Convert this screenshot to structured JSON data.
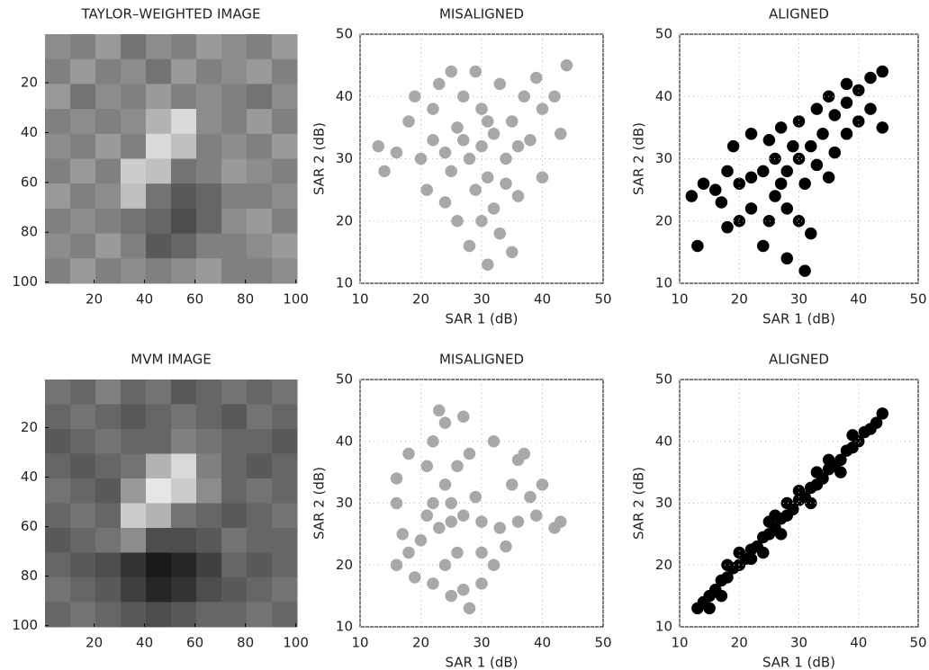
{
  "chart_data": [
    {
      "type": "image",
      "title": "TAYLOR–WEIGHTED IMAGE",
      "colormap": "gray",
      "xlim": [
        0.5,
        100.5
      ],
      "ylim": [
        100.5,
        0.5
      ],
      "xticks": [
        20,
        40,
        60,
        80,
        100
      ],
      "yticks": [
        20,
        40,
        60,
        80,
        100
      ],
      "z": [
        [
          0.55,
          0.5,
          0.6,
          0.45,
          0.55,
          0.5,
          0.6,
          0.55,
          0.5,
          0.6
        ],
        [
          0.5,
          0.6,
          0.5,
          0.55,
          0.45,
          0.6,
          0.5,
          0.55,
          0.6,
          0.5
        ],
        [
          0.6,
          0.45,
          0.55,
          0.5,
          0.6,
          0.5,
          0.55,
          0.5,
          0.45,
          0.55
        ],
        [
          0.5,
          0.55,
          0.5,
          0.55,
          0.7,
          0.85,
          0.55,
          0.5,
          0.6,
          0.5
        ],
        [
          0.55,
          0.5,
          0.6,
          0.5,
          0.85,
          0.75,
          0.5,
          0.55,
          0.5,
          0.6
        ],
        [
          0.5,
          0.6,
          0.5,
          0.8,
          0.75,
          0.45,
          0.5,
          0.6,
          0.55,
          0.5
        ],
        [
          0.6,
          0.5,
          0.55,
          0.75,
          0.45,
          0.35,
          0.4,
          0.5,
          0.5,
          0.55
        ],
        [
          0.5,
          0.55,
          0.5,
          0.45,
          0.4,
          0.3,
          0.4,
          0.55,
          0.6,
          0.5
        ],
        [
          0.55,
          0.5,
          0.6,
          0.5,
          0.35,
          0.4,
          0.5,
          0.5,
          0.55,
          0.6
        ],
        [
          0.5,
          0.6,
          0.5,
          0.55,
          0.5,
          0.55,
          0.6,
          0.5,
          0.5,
          0.55
        ]
      ]
    },
    {
      "type": "scatter",
      "title": "MISALIGNED",
      "xlabel": "SAR 1 (dB)",
      "ylabel": "SAR 2 (dB)",
      "color": "#a8a8a8",
      "grid": true,
      "xlim": [
        10,
        50
      ],
      "ylim": [
        10,
        50
      ],
      "xticks": [
        10,
        20,
        30,
        40,
        50
      ],
      "yticks": [
        10,
        20,
        30,
        40,
        50
      ],
      "x": [
        30,
        28,
        32,
        26,
        34,
        30,
        25,
        35,
        29,
        31,
        22,
        38,
        27,
        33,
        24,
        36,
        20,
        40,
        18,
        42,
        30,
        28,
        33,
        23,
        44,
        16,
        13,
        40,
        37,
        26,
        31,
        35,
        21,
        39,
        19,
        25,
        43,
        14,
        29,
        34,
        27,
        31,
        24,
        36,
        22,
        32
      ],
      "values": [
        32,
        30,
        34,
        35,
        30,
        38,
        28,
        36,
        25,
        27,
        33,
        33,
        40,
        42,
        23,
        24,
        30,
        38,
        36,
        40,
        20,
        16,
        18,
        42,
        45,
        31,
        32,
        27,
        40,
        20,
        13,
        15,
        25,
        43,
        40,
        44,
        34,
        28,
        44,
        26,
        33,
        36,
        31,
        32,
        38,
        22
      ]
    },
    {
      "type": "scatter",
      "title": "ALIGNED",
      "xlabel": "SAR 1 (dB)",
      "ylabel": "SAR 2 (dB)",
      "color": "#000000",
      "grid": true,
      "xlim": [
        10,
        50
      ],
      "ylim": [
        10,
        50
      ],
      "xticks": [
        10,
        20,
        30,
        40,
        50
      ],
      "yticks": [
        10,
        20,
        30,
        40,
        50
      ],
      "x": [
        30,
        28,
        32,
        34,
        36,
        38,
        40,
        42,
        44,
        26,
        24,
        22,
        20,
        18,
        16,
        14,
        12,
        25,
        27,
        30,
        33,
        35,
        38,
        26,
        28,
        30,
        32,
        25,
        22,
        20,
        24,
        28,
        31,
        27,
        33,
        36,
        38,
        40,
        42,
        44,
        22,
        19,
        17,
        13,
        18,
        35,
        29,
        31
      ],
      "values": [
        30,
        28,
        32,
        34,
        37,
        39,
        41,
        43,
        44,
        30,
        28,
        27,
        26,
        28,
        25,
        26,
        24,
        33,
        35,
        36,
        38,
        40,
        42,
        24,
        22,
        20,
        18,
        20,
        22,
        20,
        16,
        14,
        12,
        26,
        29,
        31,
        34,
        36,
        38,
        35,
        34,
        32,
        23,
        16,
        19,
        27,
        32,
        26
      ]
    },
    {
      "type": "image",
      "title": "MVM IMAGE",
      "colormap": "gray",
      "xlim": [
        0.5,
        100.5
      ],
      "ylim": [
        100.5,
        0.5
      ],
      "xticks": [
        20,
        40,
        60,
        80,
        100
      ],
      "yticks": [
        20,
        40,
        60,
        80,
        100
      ],
      "z": [
        [
          0.45,
          0.4,
          0.5,
          0.4,
          0.45,
          0.35,
          0.4,
          0.45,
          0.4,
          0.45
        ],
        [
          0.4,
          0.45,
          0.4,
          0.35,
          0.4,
          0.45,
          0.4,
          0.35,
          0.45,
          0.4
        ],
        [
          0.35,
          0.4,
          0.45,
          0.4,
          0.4,
          0.5,
          0.45,
          0.4,
          0.4,
          0.35
        ],
        [
          0.4,
          0.35,
          0.4,
          0.45,
          0.7,
          0.85,
          0.5,
          0.4,
          0.35,
          0.4
        ],
        [
          0.45,
          0.4,
          0.35,
          0.6,
          0.9,
          0.8,
          0.55,
          0.4,
          0.45,
          0.4
        ],
        [
          0.4,
          0.45,
          0.4,
          0.8,
          0.7,
          0.45,
          0.4,
          0.35,
          0.4,
          0.45
        ],
        [
          0.35,
          0.4,
          0.45,
          0.55,
          0.3,
          0.3,
          0.35,
          0.45,
          0.4,
          0.4
        ],
        [
          0.4,
          0.35,
          0.3,
          0.2,
          0.1,
          0.15,
          0.25,
          0.4,
          0.35,
          0.4
        ],
        [
          0.45,
          0.4,
          0.35,
          0.25,
          0.15,
          0.2,
          0.3,
          0.35,
          0.4,
          0.45
        ],
        [
          0.4,
          0.45,
          0.4,
          0.35,
          0.3,
          0.35,
          0.4,
          0.4,
          0.45,
          0.4
        ]
      ]
    },
    {
      "type": "scatter",
      "title": "MISALIGNED",
      "xlabel": "SAR 1 (dB)",
      "ylabel": "SAR 2 (dB)",
      "color": "#a8a8a8",
      "grid": true,
      "xlim": [
        10,
        50
      ],
      "ylim": [
        10,
        50
      ],
      "xticks": [
        10,
        20,
        30,
        40,
        50
      ],
      "yticks": [
        10,
        20,
        30,
        40,
        50
      ],
      "x": [
        25,
        23,
        27,
        22,
        24,
        26,
        28,
        22,
        24,
        21,
        30,
        33,
        36,
        39,
        42,
        43,
        38,
        35,
        40,
        37,
        36,
        20,
        18,
        17,
        16,
        19,
        22,
        25,
        28,
        27,
        24,
        26,
        30,
        32,
        29,
        25,
        21,
        16,
        16,
        18,
        32,
        27,
        23,
        34,
        30
      ],
      "values": [
        27,
        26,
        28,
        30,
        33,
        36,
        38,
        40,
        43,
        36,
        27,
        26,
        27,
        28,
        26,
        27,
        31,
        33,
        33,
        38,
        37,
        24,
        22,
        25,
        20,
        18,
        17,
        15,
        13,
        16,
        20,
        22,
        22,
        20,
        31,
        30,
        28,
        30,
        34,
        38,
        40,
        44,
        45,
        23,
        17
      ]
    },
    {
      "type": "scatter",
      "title": "ALIGNED",
      "xlabel": "SAR 1 (dB)",
      "ylabel": "SAR 2 (dB)",
      "color": "#000000",
      "grid": true,
      "xlim": [
        10,
        50
      ],
      "ylim": [
        10,
        50
      ],
      "xticks": [
        10,
        20,
        30,
        40,
        50
      ],
      "yticks": [
        10,
        20,
        30,
        40,
        50
      ],
      "x": [
        13,
        14,
        15,
        16,
        17,
        18,
        19,
        20,
        21,
        22,
        23,
        24,
        25,
        26,
        27,
        28,
        29,
        30,
        31,
        32,
        33,
        34,
        35,
        36,
        37,
        38,
        39,
        40,
        41,
        42,
        43,
        44,
        20,
        22,
        25,
        27,
        30,
        32,
        35,
        37,
        24,
        18,
        28,
        33,
        39,
        15,
        17,
        26
      ],
      "values": [
        13,
        14,
        15,
        16,
        17.5,
        18,
        19.5,
        20,
        21,
        22.5,
        23,
        24.5,
        25,
        26,
        27.5,
        28,
        29,
        30.5,
        31,
        32.5,
        33,
        34,
        35.5,
        36,
        37,
        38.5,
        39,
        40,
        41.5,
        42,
        43,
        44.5,
        22,
        21,
        27,
        25,
        32,
        30,
        37,
        35,
        22,
        20,
        30,
        35,
        41,
        13,
        15,
        28
      ]
    }
  ]
}
